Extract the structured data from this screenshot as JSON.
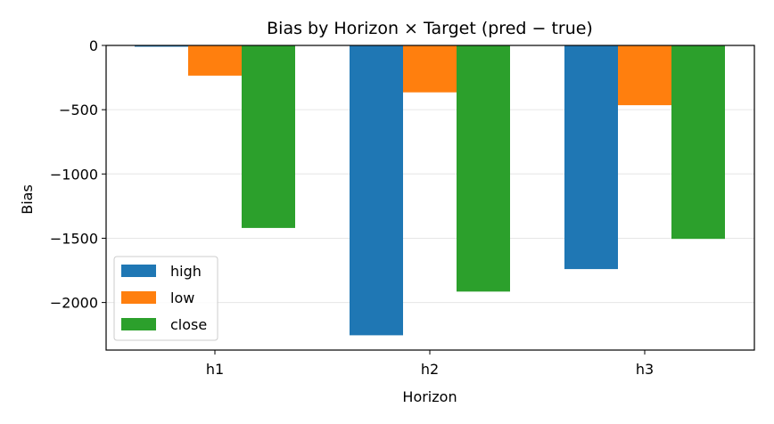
{
  "chart_data": {
    "type": "bar",
    "title": "Bias by Horizon × Target (pred − true)",
    "xlabel": "Horizon",
    "ylabel": "Bias",
    "categories": [
      "h1",
      "h2",
      "h3"
    ],
    "series": [
      {
        "name": "high",
        "color": "#1f77b4",
        "values": [
          -10,
          -2255,
          -1740
        ]
      },
      {
        "name": "low",
        "color": "#ff7f0e",
        "values": [
          -235,
          -365,
          -465
        ]
      },
      {
        "name": "close",
        "color": "#2ca02c",
        "values": [
          -1420,
          -1915,
          -1505
        ]
      }
    ],
    "ylim": [
      -2370,
      0
    ],
    "yticks": [
      0,
      -500,
      -1000,
      -1500,
      -2000
    ],
    "ytick_labels": [
      "0",
      "−500",
      "−1000",
      "−1500",
      "−2000"
    ],
    "grid": "y",
    "legend_position": "lower-left"
  }
}
